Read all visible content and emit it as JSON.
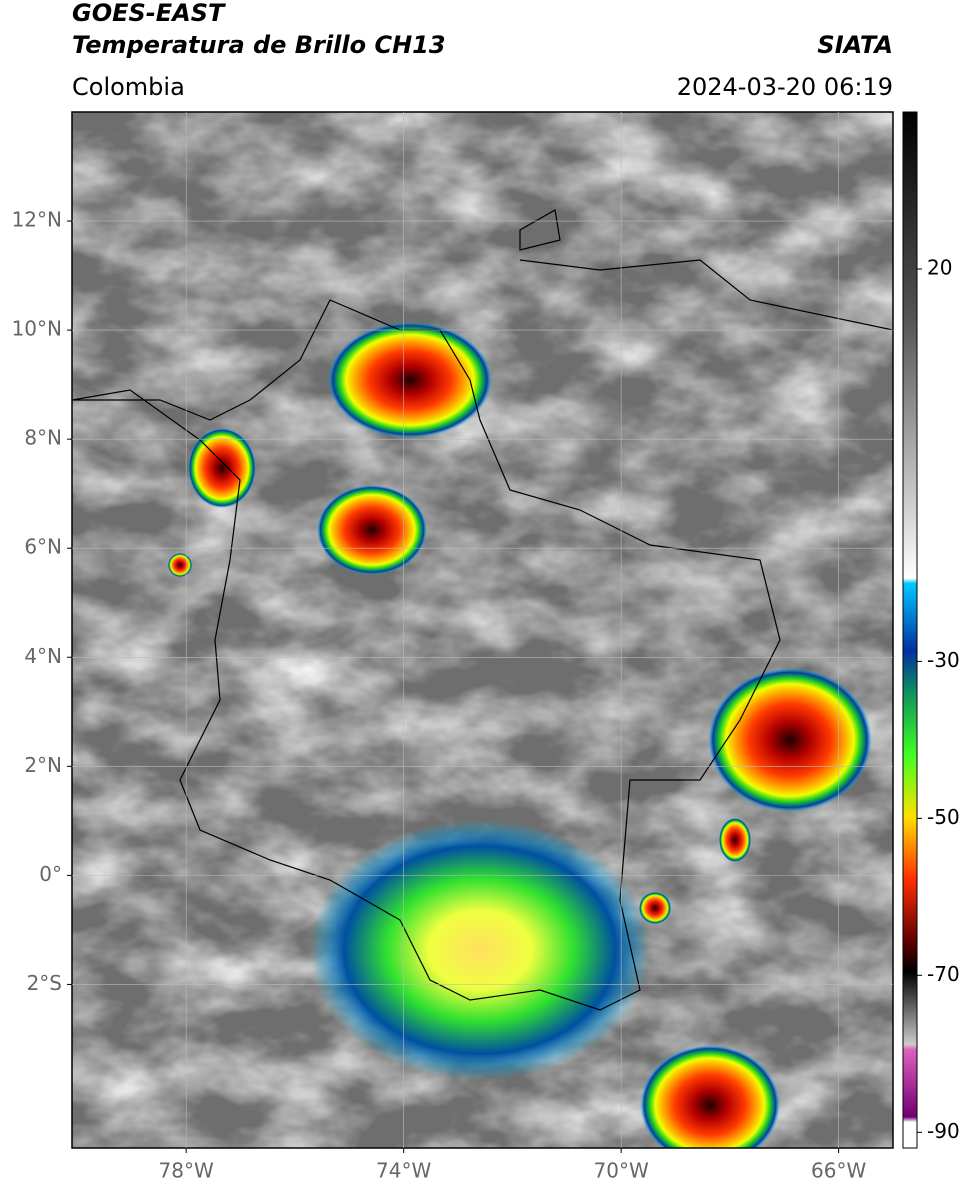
{
  "header": {
    "title": "GOES-EAST",
    "subtitle": "Temperatura de Brillo CH13",
    "source": "SIATA",
    "region": "Colombia",
    "datetime": "2024-03-20 06:19"
  },
  "map": {
    "xlim": [
      -80.1,
      -65
    ],
    "ylim": [
      -5,
      14
    ],
    "grid": true,
    "xticks": [
      {
        "value": -78,
        "label": "78°W"
      },
      {
        "value": -74,
        "label": "74°W"
      },
      {
        "value": -70,
        "label": "70°W"
      },
      {
        "value": -66,
        "label": "66°W"
      }
    ],
    "yticks": [
      {
        "value": 12,
        "label": "12°N"
      },
      {
        "value": 10,
        "label": "10°N"
      },
      {
        "value": 8,
        "label": "8°N"
      },
      {
        "value": 6,
        "label": "6°N"
      },
      {
        "value": 4,
        "label": "4°N"
      },
      {
        "value": 2,
        "label": "2°N"
      },
      {
        "value": 0,
        "label": "0°"
      },
      {
        "value": -2,
        "label": "2°S"
      }
    ]
  },
  "colorbar": {
    "lim": [
      -92,
      40
    ],
    "ticks": [
      20,
      -30,
      -50,
      -70,
      -90
    ]
  }
}
